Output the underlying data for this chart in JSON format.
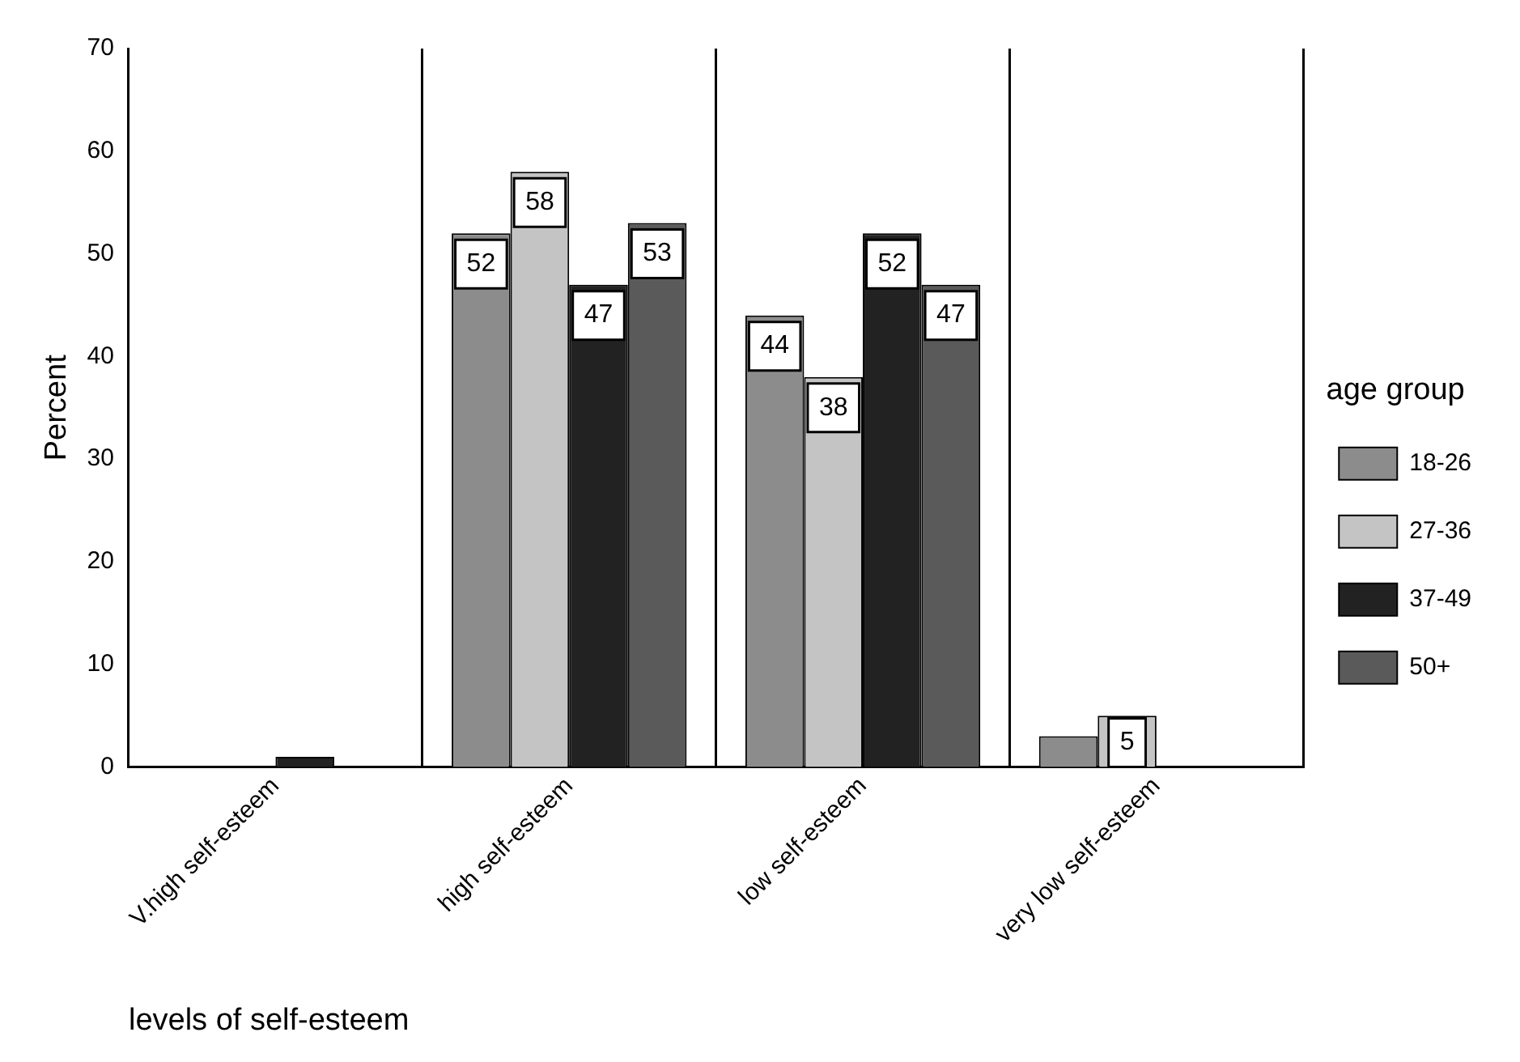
{
  "chart_data": {
    "type": "bar",
    "xlabel": "levels of self-esteem",
    "ylabel": "Percent",
    "legend_title": "age group",
    "legend": "right",
    "grid": "x",
    "categories": [
      "V.high self-esteem",
      "high self-esteem",
      "low self-esteem",
      "very low self-esteem"
    ],
    "ylim": [
      0,
      70
    ],
    "yticks": [
      0,
      10,
      20,
      30,
      40,
      50,
      60,
      70
    ],
    "series": [
      {
        "name": "18-26",
        "color": "#8c8c8c",
        "values": [
          0,
          52,
          44,
          3
        ],
        "value_labels": [
          null,
          "52",
          "44",
          null
        ]
      },
      {
        "name": "27-36",
        "color": "#c4c4c4",
        "values": [
          0,
          58,
          38,
          5
        ],
        "value_labels": [
          null,
          "58",
          "38",
          "5"
        ]
      },
      {
        "name": "37-49",
        "color": "#222222",
        "values": [
          1,
          47,
          52,
          0
        ],
        "value_labels": [
          null,
          "47",
          "52",
          null
        ]
      },
      {
        "name": "50+",
        "color": "#5a5a5a",
        "values": [
          0,
          53,
          47,
          0
        ],
        "value_labels": [
          null,
          "53",
          "47",
          null
        ]
      }
    ]
  }
}
